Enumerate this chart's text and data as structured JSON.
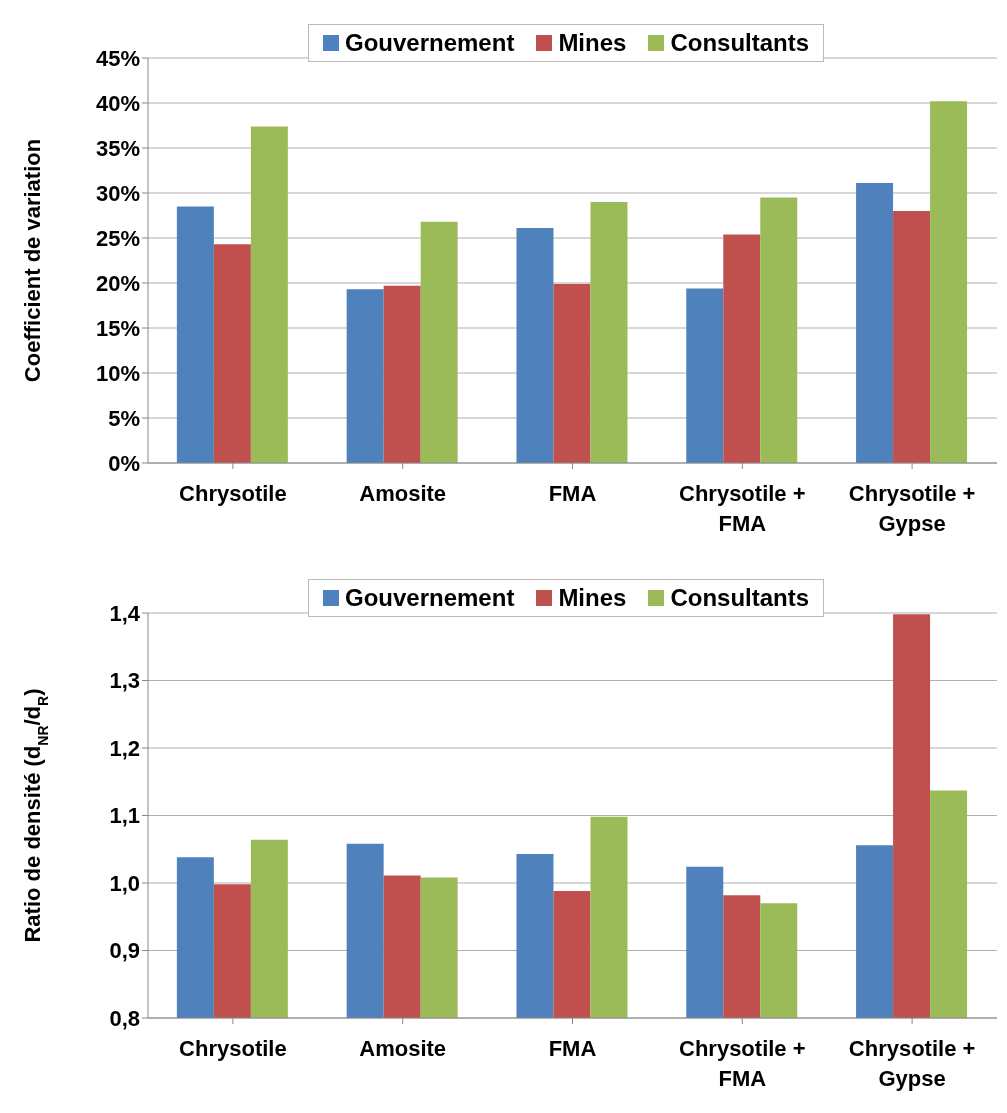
{
  "chart_data": [
    {
      "type": "bar",
      "ylabel": "Coefficient de variation",
      "categories": [
        "Chrysotile",
        "Amosite",
        "FMA",
        "Chrysotile + FMA",
        "Chrysotile + Gypse"
      ],
      "series": [
        {
          "name": "Gouvernement",
          "color": "#4f81bd",
          "values": [
            28.5,
            19.3,
            26.1,
            19.4,
            31.1
          ]
        },
        {
          "name": "Mines",
          "color": "#c0504d",
          "values": [
            24.3,
            19.7,
            19.9,
            25.4,
            28.0
          ]
        },
        {
          "name": "Consultants",
          "color": "#9bbb59",
          "values": [
            37.4,
            26.8,
            29.0,
            29.5,
            40.2
          ]
        }
      ],
      "ylim": [
        0,
        45
      ],
      "yticks": [
        {
          "value": 0,
          "label": "0%"
        },
        {
          "value": 5,
          "label": "5%"
        },
        {
          "value": 10,
          "label": "10%"
        },
        {
          "value": 15,
          "label": "15%"
        },
        {
          "value": 20,
          "label": "20%"
        },
        {
          "value": 25,
          "label": "25%"
        },
        {
          "value": 30,
          "label": "30%"
        },
        {
          "value": 35,
          "label": "35%"
        },
        {
          "value": 40,
          "label": "40%"
        },
        {
          "value": 45,
          "label": "45%"
        }
      ],
      "grid": "y",
      "legend": "top"
    },
    {
      "type": "bar",
      "ylabel": "Ratio de densité (d$_{NR}$/d$_{R}$)",
      "categories": [
        "Chrysotile",
        "Amosite",
        "FMA",
        "Chrysotile + FMA",
        "Chrysotile + Gypse"
      ],
      "series": [
        {
          "name": "Gouvernement",
          "color": "#4f81bd",
          "values": [
            1.038,
            1.058,
            1.043,
            1.024,
            1.056
          ]
        },
        {
          "name": "Mines",
          "color": "#c0504d",
          "values": [
            0.998,
            1.011,
            0.988,
            0.982,
            1.398
          ]
        },
        {
          "name": "Consultants",
          "color": "#9bbb59",
          "values": [
            1.064,
            1.008,
            1.098,
            0.97,
            1.137
          ]
        }
      ],
      "ylim": [
        0.8,
        1.4
      ],
      "yticks": [
        {
          "value": 0.8,
          "label": "0,8"
        },
        {
          "value": 0.9,
          "label": "0,9"
        },
        {
          "value": 1.0,
          "label": "1,0"
        },
        {
          "value": 1.1,
          "label": "1,1"
        },
        {
          "value": 1.2,
          "label": "1,2"
        },
        {
          "value": 1.3,
          "label": "1,3"
        },
        {
          "value": 1.4,
          "label": "1,4"
        }
      ],
      "grid": "y",
      "legend": "top"
    }
  ]
}
